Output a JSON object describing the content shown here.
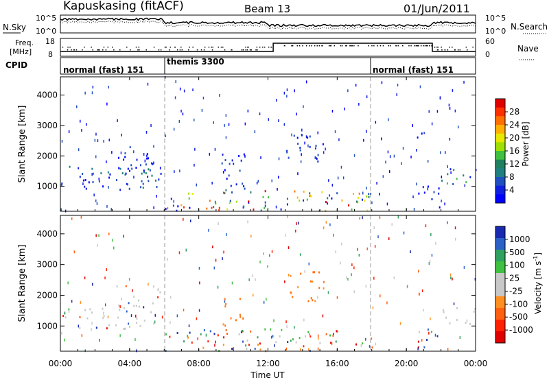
{
  "header": {
    "station": "Kapuskasing (fitACF)",
    "beam": "Beam 13",
    "date": "01/Jun/2011"
  },
  "noise_panel": {
    "left_label": "N.Sky",
    "right_label": "N.Search",
    "tick_top": "10^5",
    "tick_bottom": "10^0"
  },
  "freq_panel": {
    "left_label_line1": "Freq.",
    "left_label_line2": "[MHz]",
    "tick_top": "18",
    "tick_bottom": "8",
    "right_label": "Nave",
    "right_tick_top": "60",
    "right_tick_bottom": "0"
  },
  "cpid_panel": {
    "label": "CPID",
    "segments": [
      {
        "label": "normal (fast) 151",
        "start_hour": 0
      },
      {
        "label": "themis 3300",
        "start_hour": 6
      },
      {
        "label": "normal (fast) 151",
        "start_hour": 18
      }
    ]
  },
  "power_colorbar": {
    "title": "Power [dB]",
    "ticks": [
      "28",
      "24",
      "20",
      "16",
      "12",
      "8",
      "4"
    ],
    "colors": [
      "#e00000",
      "#ff3000",
      "#ff7000",
      "#ffb000",
      "#e8e800",
      "#a0e000",
      "#40c040",
      "#208060",
      "#208080",
      "#2050c0",
      "#1020e0",
      "#0000ff"
    ]
  },
  "velocity_colorbar": {
    "title": "Velocity [m s",
    "title_sup": "-1",
    "title_end": "]",
    "ticks": [
      "1000",
      "500",
      "100",
      "25",
      "-25",
      "-100",
      "-500",
      "-1000"
    ],
    "colors": [
      "#1a2ab0",
      "#2a60c8",
      "#30a060",
      "#40c040",
      "#c8c8c8",
      "#c8c8c8",
      "#ff9020",
      "#ff6010",
      "#ff2000",
      "#e00000"
    ]
  },
  "chart_data": [
    {
      "type": "heatmap",
      "title": "Power",
      "ylabel": "Slant Range [km]",
      "ylim": [
        180,
        4600
      ],
      "yticks": [
        1000,
        2000,
        3000,
        4000
      ],
      "xlim": [
        0,
        24
      ],
      "xtick_labels": [
        "00:00",
        "04:00",
        "08:00",
        "12:00",
        "16:00",
        "20:00",
        "00:00"
      ],
      "xlabel": "Time UT",
      "regions": [
        {
          "t": [
            0,
            5.8
          ],
          "r": [
            800,
            1700
          ],
          "level": "low-mid"
        },
        {
          "t": [
            3.0,
            5.8
          ],
          "r": [
            1500,
            2300
          ],
          "level": "low"
        },
        {
          "t": [
            6.0,
            18.0
          ],
          "r": [
            180,
            900
          ],
          "level": "high"
        },
        {
          "t": [
            9.3,
            10.7
          ],
          "r": [
            700,
            2100
          ],
          "level": "low"
        },
        {
          "t": [
            13.0,
            15.2
          ],
          "r": [
            1800,
            2800
          ],
          "level": "low"
        },
        {
          "t": [
            19.5,
            21.0
          ],
          "r": [
            2600,
            2800
          ],
          "level": "low"
        },
        {
          "t": [
            22.0,
            24.0
          ],
          "r": [
            1000,
            1600
          ],
          "level": "mid"
        },
        {
          "t": [
            20.5,
            22.0
          ],
          "r": [
            300,
            1000
          ],
          "level": "low"
        }
      ]
    },
    {
      "type": "heatmap",
      "title": "Velocity",
      "ylabel": "Slant Range [km]",
      "ylim": [
        180,
        4600
      ],
      "yticks": [
        1000,
        2000,
        3000,
        4000
      ],
      "xlim": [
        0,
        24
      ],
      "xtick_labels": [
        "00:00",
        "04:00",
        "08:00",
        "12:00",
        "16:00",
        "20:00",
        "00:00"
      ],
      "xlabel": "Time UT",
      "regions": [
        {
          "t": [
            0,
            5.8
          ],
          "r": [
            900,
            1600
          ],
          "level": "ground-scatter"
        },
        {
          "t": [
            3.0,
            5.8
          ],
          "r": [
            1500,
            2300
          ],
          "level": "ground-scatter"
        },
        {
          "t": [
            6.0,
            18.0
          ],
          "r": [
            180,
            900
          ],
          "level": "mixed"
        },
        {
          "t": [
            9.3,
            10.7
          ],
          "r": [
            900,
            2000
          ],
          "level": "negative"
        },
        {
          "t": [
            13.0,
            15.2
          ],
          "r": [
            1800,
            2800
          ],
          "level": "negative"
        },
        {
          "t": [
            22.0,
            24.0
          ],
          "r": [
            1000,
            1600
          ],
          "level": "ground-scatter"
        },
        {
          "t": [
            20.5,
            22.0
          ],
          "r": [
            300,
            1000
          ],
          "level": "mixed"
        }
      ]
    }
  ]
}
